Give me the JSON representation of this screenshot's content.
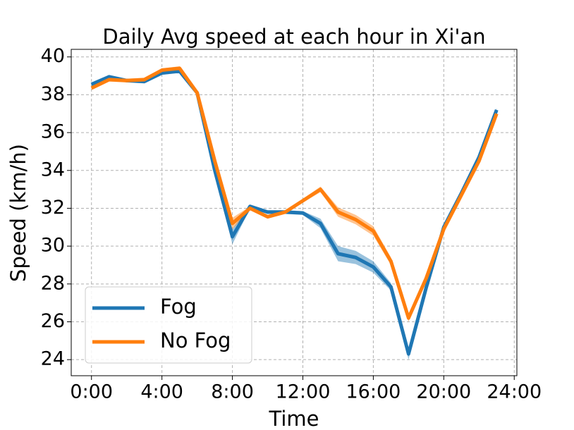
{
  "chart_data": {
    "type": "line",
    "title": "Daily Avg speed at each hour in Xi'an",
    "xlabel": "Time",
    "ylabel": "Speed (km/h)",
    "x": [
      0,
      1,
      2,
      3,
      4,
      5,
      6,
      7,
      8,
      9,
      10,
      11,
      12,
      13,
      14,
      15,
      16,
      17,
      18,
      19,
      20,
      21,
      22,
      23
    ],
    "series": [
      {
        "name": "Fog",
        "color": "#1f77b4",
        "values": [
          38.55,
          38.95,
          38.75,
          38.7,
          39.15,
          39.25,
          38.1,
          34.0,
          30.5,
          32.1,
          31.8,
          31.8,
          31.75,
          31.2,
          29.6,
          29.4,
          28.9,
          27.85,
          24.3,
          27.8,
          31.0,
          32.8,
          34.7,
          37.2
        ],
        "lower": [
          38.45,
          38.85,
          38.65,
          38.6,
          39.05,
          39.15,
          38.0,
          33.8,
          30.1,
          32.0,
          31.7,
          31.7,
          31.65,
          30.95,
          29.2,
          29.05,
          28.6,
          27.65,
          24.0,
          27.7,
          30.9,
          32.7,
          34.6,
          37.1
        ],
        "upper": [
          38.65,
          39.05,
          38.85,
          38.8,
          39.25,
          39.35,
          38.2,
          34.2,
          30.9,
          32.2,
          31.9,
          31.9,
          31.85,
          31.45,
          30.0,
          29.75,
          29.2,
          28.05,
          24.6,
          27.9,
          31.1,
          32.9,
          34.8,
          37.3
        ]
      },
      {
        "name": "No Fog",
        "color": "#ff7f0e",
        "values": [
          38.35,
          38.8,
          38.75,
          38.8,
          39.3,
          39.4,
          38.1,
          34.5,
          31.2,
          32.0,
          31.55,
          31.8,
          32.4,
          33.0,
          31.8,
          31.4,
          30.8,
          29.2,
          26.2,
          28.3,
          30.9,
          32.7,
          34.5,
          37.0
        ],
        "lower": [
          38.25,
          38.7,
          38.65,
          38.7,
          39.2,
          39.3,
          38.0,
          34.4,
          30.9,
          31.9,
          31.45,
          31.7,
          32.3,
          32.85,
          31.55,
          31.15,
          30.55,
          29.0,
          26.0,
          28.2,
          30.8,
          32.6,
          34.4,
          36.9
        ],
        "upper": [
          38.45,
          38.9,
          38.85,
          38.9,
          39.4,
          39.5,
          38.2,
          34.6,
          31.5,
          32.1,
          31.65,
          31.9,
          32.5,
          33.15,
          32.05,
          31.65,
          31.05,
          29.4,
          26.4,
          28.4,
          31.0,
          32.8,
          34.6,
          37.1
        ]
      }
    ],
    "xlim": [
      -1.15,
      24.15
    ],
    "ylim": [
      23.15,
      40.4
    ],
    "xticks": [
      {
        "value": 0,
        "label": "0:00"
      },
      {
        "value": 4,
        "label": "4:00"
      },
      {
        "value": 8,
        "label": "8:00"
      },
      {
        "value": 12,
        "label": "12:00"
      },
      {
        "value": 16,
        "label": "16:00"
      },
      {
        "value": 20,
        "label": "20:00"
      },
      {
        "value": 24,
        "label": "24:00"
      }
    ],
    "yticks": [
      24,
      26,
      28,
      30,
      32,
      34,
      36,
      38,
      40
    ],
    "grid": true,
    "legend": "lower left"
  }
}
